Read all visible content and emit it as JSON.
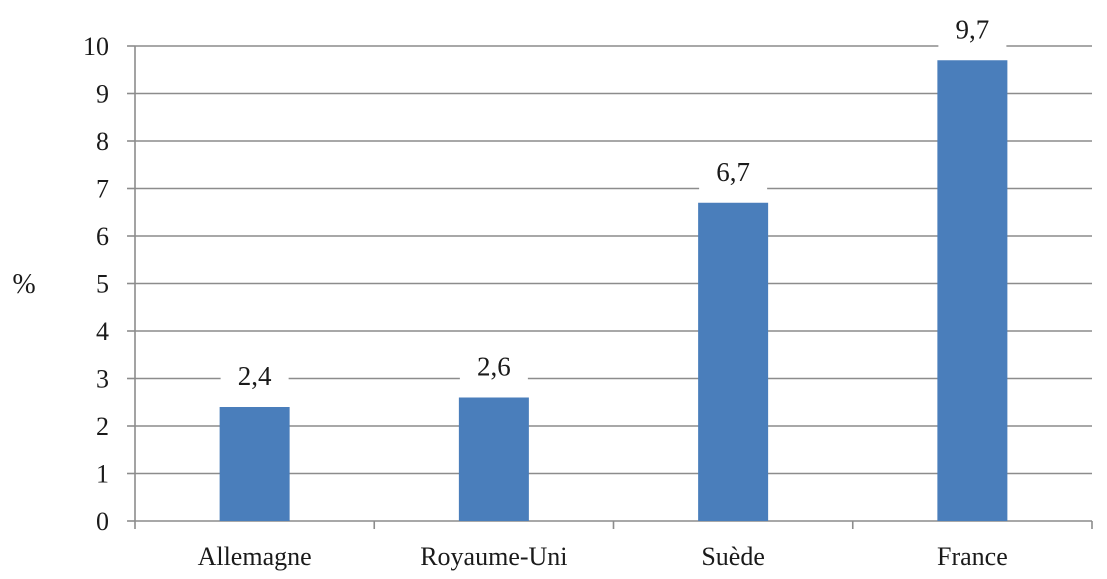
{
  "chart_data": {
    "type": "bar",
    "categories": [
      "Allemagne",
      "Royaume-Uni",
      "Suède",
      "France"
    ],
    "series": [
      {
        "values": [
          2.4,
          2.6,
          6.7,
          9.7
        ],
        "data_labels": [
          "2,4",
          "2,6",
          "6,7",
          "9,7"
        ],
        "color": "#4a7ebb"
      }
    ],
    "title": "",
    "xlabel": "",
    "ylabel": "%",
    "ylim": [
      0,
      10
    ],
    "y_ticks": [
      0,
      1,
      2,
      3,
      4,
      5,
      6,
      7,
      8,
      9,
      10
    ],
    "grid": true,
    "legend": "none",
    "colors": {
      "bar": "#4a7ebb",
      "grid": "#8c8c8c",
      "axis": "#8c8c8c",
      "text": "#1a1a1a"
    }
  }
}
